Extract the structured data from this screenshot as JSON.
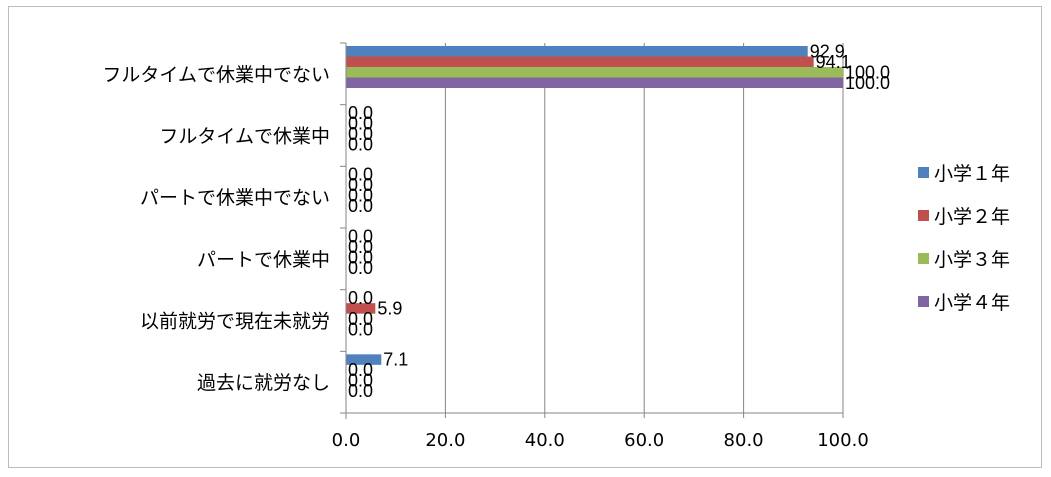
{
  "chart_data": {
    "type": "bar",
    "orientation": "horizontal",
    "categories": [
      "フルタイムで休業中でない",
      "フルタイムで休業中",
      "パートで休業中でない",
      "パートで休業中",
      "以前就労で現在未就労",
      "過去に就労なし"
    ],
    "series": [
      {
        "name": "小学１年",
        "color": "#4f81bd",
        "values": [
          92.9,
          0.0,
          0.0,
          0.0,
          0.0,
          7.1
        ]
      },
      {
        "name": "小学２年",
        "color": "#c0504d",
        "values": [
          94.1,
          0.0,
          0.0,
          0.0,
          5.9,
          0.0
        ]
      },
      {
        "name": "小学３年",
        "color": "#9bbb59",
        "values": [
          100.0,
          0.0,
          0.0,
          0.0,
          0.0,
          0.0
        ]
      },
      {
        "name": "小学４年",
        "color": "#8064a2",
        "values": [
          100.0,
          0.0,
          0.0,
          0.0,
          0.0,
          0.0
        ]
      }
    ],
    "xlim": [
      0,
      100
    ],
    "ticks": [
      "0.0",
      "20.0",
      "40.0",
      "60.0",
      "80.0",
      "100.0"
    ],
    "tick_values": [
      0,
      20,
      40,
      60,
      80,
      100
    ],
    "grid": "vertical",
    "legend": "right",
    "data_labels": true,
    "title": "",
    "xlabel": "",
    "ylabel": ""
  }
}
